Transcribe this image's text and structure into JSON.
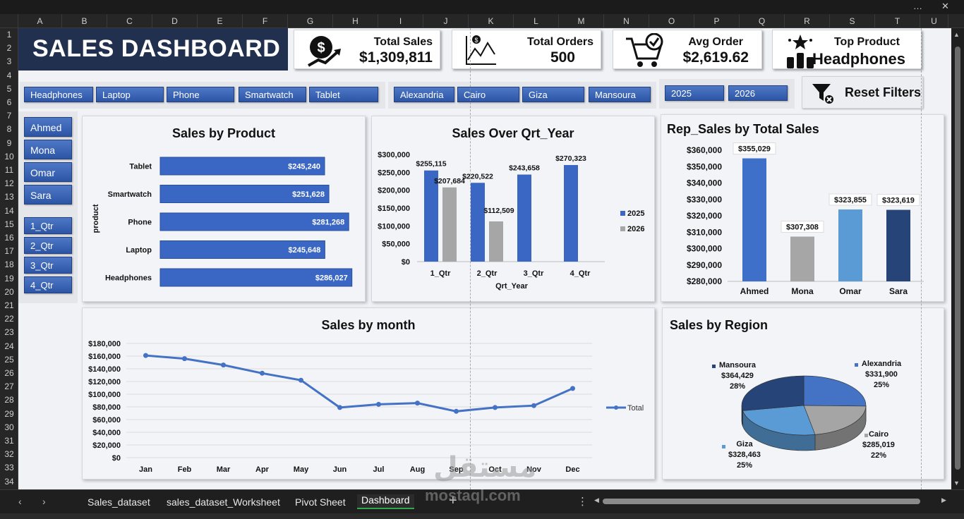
{
  "window": {
    "controls": [
      "…",
      "—",
      "✕"
    ]
  },
  "columns": [
    "A",
    "B",
    "C",
    "D",
    "E",
    "F",
    "G",
    "H",
    "I",
    "J",
    "K",
    "L",
    "M",
    "N",
    "O",
    "P",
    "Q",
    "R",
    "S",
    "T",
    "U"
  ],
  "rows": [
    "1",
    "2",
    "3",
    "4",
    "5",
    "6",
    "7",
    "8",
    "9",
    "10",
    "11",
    "12",
    "13",
    "14",
    "15",
    "16",
    "17",
    "18",
    "19",
    "20",
    "21",
    "22",
    "23",
    "24",
    "25",
    "26",
    "27",
    "28",
    "29",
    "30",
    "31",
    "32",
    "33",
    "34"
  ],
  "dashboard": {
    "title": "SALES DASHBOARD",
    "kpis": [
      {
        "label": "Total Sales",
        "value": "$1,309,811",
        "icon": "money-growth-icon"
      },
      {
        "label": "Total Orders",
        "value": "500",
        "icon": "orders-chart-icon"
      },
      {
        "label": "Avg Order",
        "value": "$2,619.62",
        "icon": "cart-check-icon"
      },
      {
        "label": "Top Product",
        "value": "Headphones",
        "icon": "top-product-icon"
      }
    ]
  },
  "slicers": {
    "products": [
      "Headphones",
      "Laptop",
      "Phone",
      "Smartwatch",
      "Tablet"
    ],
    "regions": [
      "Alexandria",
      "Cairo",
      "Giza",
      "Mansoura"
    ],
    "years": [
      "2025",
      "2026"
    ],
    "reps": [
      "Ahmed",
      "Mona",
      "Omar",
      "Sara"
    ],
    "quarters": [
      "1_Qtr",
      "2_Qtr",
      "3_Qtr",
      "4_Qtr"
    ],
    "reset_label": "Reset Filters"
  },
  "chart_titles": {
    "product": "Sales by Product",
    "qtr": "Sales Over Qrt_Year",
    "rep": "Rep_Sales by Total Sales",
    "month": "Sales by month",
    "region": "Sales by Region"
  },
  "chart_data": [
    {
      "id": "product",
      "type": "bar",
      "orientation": "horizontal",
      "title": "Sales by Product",
      "ylabel": "product",
      "categories": [
        "Tablet",
        "Smartwatch",
        "Phone",
        "Laptop",
        "Headphones"
      ],
      "values": [
        245240,
        251628,
        281268,
        245648,
        286027
      ],
      "labels": [
        "$245,240",
        "$251,628",
        "$281,268",
        "$245,648",
        "$286,027"
      ],
      "color": "#3a66c4"
    },
    {
      "id": "qtr",
      "type": "bar",
      "title": "Sales Over Qrt_Year",
      "xlabel": "Qrt_Year",
      "categories": [
        "1_Qtr",
        "2_Qtr",
        "3_Qtr",
        "4_Qtr"
      ],
      "series": [
        {
          "name": "2025",
          "values": [
            255115,
            220522,
            243658,
            270323
          ],
          "labels": [
            "$255,115",
            "$220,522",
            "$243,658",
            "$270,323"
          ],
          "color": "#3a66c4"
        },
        {
          "name": "2026",
          "values": [
            207684,
            112509,
            null,
            null
          ],
          "labels": [
            "$207,684",
            "$112,509",
            "",
            ""
          ],
          "color": "#a6a6a6"
        }
      ],
      "yticks": [
        "$0",
        "$50,000",
        "$100,000",
        "$150,000",
        "$200,000",
        "$250,000",
        "$300,000"
      ],
      "ylim": [
        0,
        300000
      ],
      "legend": "right"
    },
    {
      "id": "rep",
      "type": "bar",
      "title": "Rep_Sales by Total Sales",
      "categories": [
        "Ahmed",
        "Mona",
        "Omar",
        "Sara"
      ],
      "values": [
        355029,
        307308,
        323855,
        323619
      ],
      "labels": [
        "$355,029",
        "$307,308",
        "$323,855",
        "$323,619"
      ],
      "colors": [
        "#3e6fc9",
        "#a6a6a6",
        "#5b9bd5",
        "#264478"
      ],
      "yticks": [
        "$280,000",
        "$290,000",
        "$300,000",
        "$310,000",
        "$320,000",
        "$330,000",
        "$340,000",
        "$350,000",
        "$360,000"
      ],
      "ylim": [
        280000,
        360000
      ]
    },
    {
      "id": "month",
      "type": "line",
      "title": "Sales by month",
      "categories": [
        "Jan",
        "Feb",
        "Mar",
        "Apr",
        "May",
        "Jun",
        "Jul",
        "Aug",
        "Sep",
        "Oct",
        "Nov",
        "Dec"
      ],
      "series": [
        {
          "name": "Total",
          "values": [
            161000,
            156000,
            146000,
            133000,
            122000,
            79000,
            84000,
            86000,
            73000,
            79000,
            82000,
            109000
          ],
          "color": "#4472c4"
        }
      ],
      "yticks": [
        "$0",
        "$20,000",
        "$40,000",
        "$60,000",
        "$80,000",
        "$100,000",
        "$120,000",
        "$140,000",
        "$160,000",
        "$180,000"
      ],
      "ylim": [
        0,
        180000
      ],
      "grid": true,
      "legend": "right"
    },
    {
      "id": "region",
      "type": "pie",
      "title": "Sales by Region",
      "slices": [
        {
          "name": "Alexandria",
          "value": 331900,
          "label": "$331,900",
          "pct": "25%",
          "color": "#4472c4"
        },
        {
          "name": "Cairo",
          "value": 285019,
          "label": "$285,019",
          "pct": "22%",
          "color": "#a5a5a5"
        },
        {
          "name": "Giza",
          "value": 328463,
          "label": "$328,463",
          "pct": "25%",
          "color": "#5b9bd5"
        },
        {
          "name": "Mansoura",
          "value": 364429,
          "label": "$364,429",
          "pct": "28%",
          "color": "#264478"
        }
      ]
    }
  ],
  "sheet_tabs": [
    "Sales_dataset",
    "sales_dataset_Worksheet",
    "Pivot Sheet",
    "Dashboard"
  ],
  "active_tab": "Dashboard",
  "watermark": {
    "line1": "مستقل",
    "line2": "mostaql.com"
  }
}
